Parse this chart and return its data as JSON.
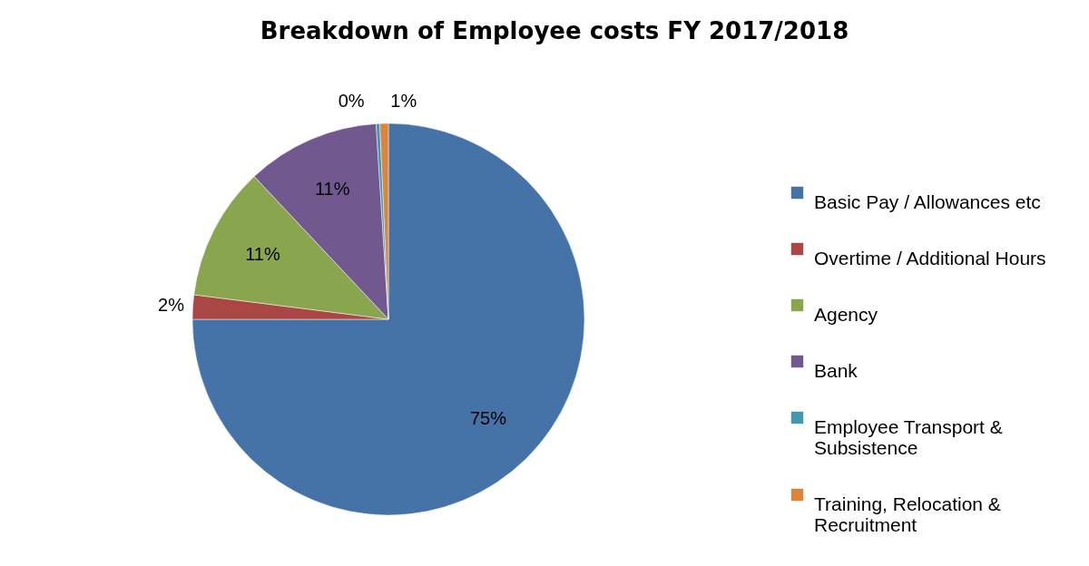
{
  "chart_data": {
    "type": "pie",
    "title": "Breakdown of Employee costs FY 2017/2018",
    "categories": [
      "Basic Pay / Allowances etc",
      "Overtime / Additional Hours",
      "Agency",
      "Bank",
      "Employee Transport & Subsistence",
      "Training, Relocation & Recruitment"
    ],
    "values": [
      75,
      2,
      11,
      11,
      0.3,
      0.7
    ],
    "value_labels": [
      "75%",
      "2%",
      "11%",
      "11%",
      "0%",
      "1%"
    ],
    "colors": [
      "#4572a7",
      "#aa4643",
      "#89a54e",
      "#71588f",
      "#4198af",
      "#db843d"
    ],
    "legend": "right"
  }
}
